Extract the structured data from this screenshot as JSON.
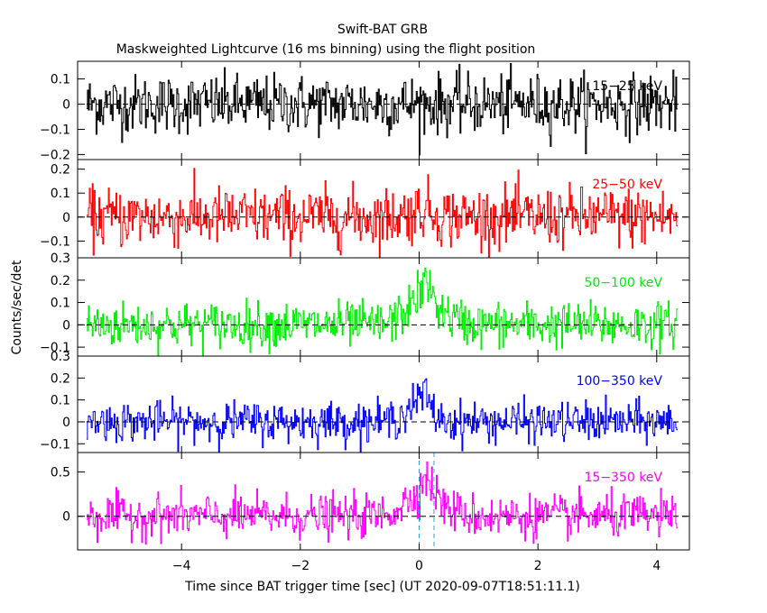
{
  "chart_data": {
    "type": "line",
    "title": "Swift-BAT GRB",
    "subtitle": "Maskweighted Lightcurve (16 ms binning) using the flight position",
    "xlabel": "Time since BAT trigger time [sec] (UT 2020-09-07T18:51:11.1)",
    "ylabel": "Counts/sec/det",
    "xlim": [
      -5.75,
      4.55
    ],
    "xticks": [
      -4,
      -2,
      0,
      2,
      4
    ],
    "xtick_labels": [
      "−4",
      "−2",
      "0",
      "2",
      "4"
    ],
    "binning_sec": 0.016,
    "data_range": [
      -5.6,
      4.35
    ],
    "markers": [
      0.0,
      0.25
    ],
    "marker_color": "#3aa0d8",
    "panels": [
      {
        "label": "15−25 keV",
        "color": "#000000",
        "ylim": [
          -0.22,
          0.17
        ],
        "yticks": [
          0.1,
          0,
          -0.1,
          -0.2
        ],
        "ytick_labels": [
          "0.1",
          "0",
          "−0.1",
          "−0.2"
        ],
        "noise_sigma": 0.058,
        "pulse": {
          "peak": 0.0,
          "t_start": 0.0,
          "t_peak": 0.0,
          "t_end": 0.0
        }
      },
      {
        "label": "25−50 keV",
        "color": "#ff0000",
        "ylim": [
          -0.17,
          0.24
        ],
        "yticks": [
          0.2,
          0.1,
          0,
          -0.1
        ],
        "ytick_labels": [
          "0.2",
          "0.1",
          "0",
          "−0.1"
        ],
        "noise_sigma": 0.062,
        "pulse": {
          "peak": 0.04,
          "t_start": -0.6,
          "t_peak": 0.1,
          "t_end": 0.6
        }
      },
      {
        "label": "50−100 keV",
        "color": "#00ee00",
        "ylim": [
          -0.14,
          0.3
        ],
        "yticks": [
          0.3,
          0.2,
          0.1,
          0,
          -0.1
        ],
        "ytick_labels": [
          "0.3",
          "0.2",
          "0.1",
          "0",
          "−0.1"
        ],
        "noise_sigma": 0.05,
        "pulse": {
          "peak": 0.2,
          "t_start": -0.7,
          "t_peak": 0.12,
          "t_end": 0.9
        }
      },
      {
        "label": "100−350 keV",
        "color": "#0000ff",
        "ylim": [
          -0.14,
          0.3
        ],
        "yticks": [
          0.3,
          0.2,
          0.1,
          0,
          -0.1
        ],
        "ytick_labels": [
          "0.3",
          "0.2",
          "0.1",
          "0",
          "−0.1"
        ],
        "noise_sigma": 0.045,
        "pulse": {
          "peak": 0.14,
          "t_start": -0.7,
          "t_peak": 0.1,
          "t_end": 0.5
        }
      },
      {
        "label": "15−350 keV",
        "color": "#ff00ff",
        "ylim": [
          -0.38,
          0.72
        ],
        "yticks": [
          0.5,
          0
        ],
        "ytick_labels": [
          "0.5",
          "0"
        ],
        "noise_sigma": 0.12,
        "pulse": {
          "peak": 0.45,
          "t_start": -0.8,
          "t_peak": 0.15,
          "t_end": 0.9
        }
      }
    ]
  }
}
